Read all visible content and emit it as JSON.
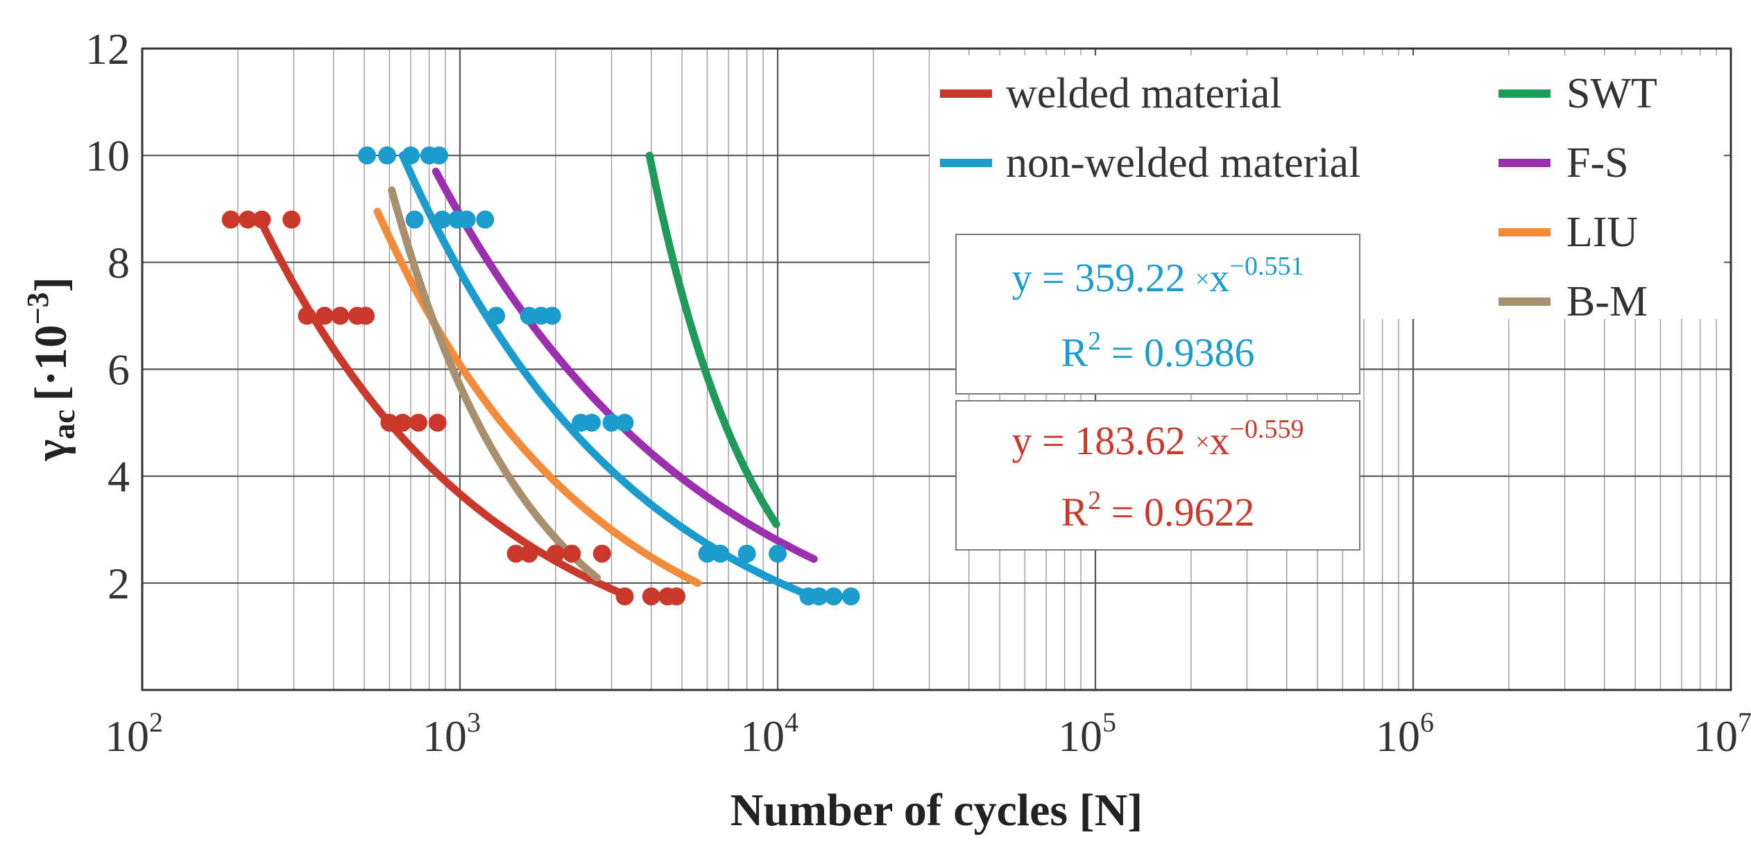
{
  "chart_data": {
    "type": "scatter",
    "title": "",
    "xlabel": "Number of cycles [N]",
    "ylabel": "γac [·10⁻³]",
    "ylabel_main": "γ",
    "ylabel_sub": "ac",
    "ylabel_unit": "[·10",
    "ylabel_exp": "−3",
    "ylabel_close": "]",
    "xscale": "log",
    "xlim": [
      100,
      10000000
    ],
    "ylim": [
      0,
      12
    ],
    "x_ticks": [
      {
        "value": 100,
        "base": "10",
        "exp": "2"
      },
      {
        "value": 1000,
        "base": "10",
        "exp": "3"
      },
      {
        "value": 10000,
        "base": "10",
        "exp": "4"
      },
      {
        "value": 100000,
        "base": "10",
        "exp": "5"
      },
      {
        "value": 1000000,
        "base": "10",
        "exp": "6"
      },
      {
        "value": 10000000,
        "base": "10",
        "exp": "7"
      }
    ],
    "y_ticks": [
      "2",
      "4",
      "6",
      "8",
      "10",
      "12"
    ],
    "y_tick_values": [
      2,
      4,
      6,
      8,
      10,
      12
    ],
    "grid": true,
    "legend_position": "top-right",
    "series": [
      {
        "name": "welded material",
        "kind": "scatter+fit",
        "color": "#c8392b",
        "points": [
          [
            190,
            8.8
          ],
          [
            215,
            8.8
          ],
          [
            238,
            8.8
          ],
          [
            295,
            8.8
          ],
          [
            330,
            7.0
          ],
          [
            375,
            7.0
          ],
          [
            420,
            7.0
          ],
          [
            475,
            7.0
          ],
          [
            505,
            7.0
          ],
          [
            600,
            5.0
          ],
          [
            660,
            5.0
          ],
          [
            740,
            5.0
          ],
          [
            850,
            5.0
          ],
          [
            1500,
            2.55
          ],
          [
            1650,
            2.55
          ],
          [
            2000,
            2.55
          ],
          [
            2250,
            2.55
          ],
          [
            2800,
            2.55
          ],
          [
            3300,
            1.75
          ],
          [
            4000,
            1.75
          ],
          [
            4500,
            1.75
          ],
          [
            4800,
            1.75
          ]
        ],
        "fit": [
          [
            235,
            8.8
          ],
          [
            3400,
            1.75
          ]
        ]
      },
      {
        "name": "non-welded material",
        "kind": "scatter+fit",
        "color": "#1c9ccd",
        "points": [
          [
            510,
            10.0
          ],
          [
            590,
            10.0
          ],
          [
            700,
            10.0
          ],
          [
            800,
            10.0
          ],
          [
            860,
            10.0
          ],
          [
            720,
            8.8
          ],
          [
            880,
            8.8
          ],
          [
            980,
            8.8
          ],
          [
            1050,
            8.8
          ],
          [
            1200,
            8.8
          ],
          [
            1300,
            7.0
          ],
          [
            1650,
            7.0
          ],
          [
            1800,
            7.0
          ],
          [
            1950,
            7.0
          ],
          [
            2400,
            5.0
          ],
          [
            2600,
            5.0
          ],
          [
            3000,
            5.0
          ],
          [
            3300,
            5.0
          ],
          [
            6000,
            2.55
          ],
          [
            6600,
            2.55
          ],
          [
            8000,
            2.55
          ],
          [
            10000,
            2.55
          ],
          [
            12500,
            1.75
          ],
          [
            13500,
            1.75
          ],
          [
            15000,
            1.75
          ],
          [
            17000,
            1.75
          ]
        ],
        "fit": [
          [
            660,
            10.0
          ],
          [
            12800,
            1.75
          ]
        ]
      },
      {
        "name": "SWT",
        "kind": "curve",
        "color": "#1f9a5a",
        "fit": [
          [
            3950,
            10.0
          ],
          [
            9900,
            3.1
          ]
        ]
      },
      {
        "name": "F-S",
        "kind": "curve",
        "color": "#9b2fae",
        "fit": [
          [
            840,
            9.7
          ],
          [
            13000,
            2.45
          ]
        ]
      },
      {
        "name": "LIU",
        "kind": "curve",
        "color": "#f28c3c",
        "fit": [
          [
            550,
            8.95
          ],
          [
            5600,
            2.0
          ]
        ]
      },
      {
        "name": "B-M",
        "kind": "curve",
        "color": "#a8906e",
        "fit": [
          [
            610,
            9.35
          ],
          [
            2700,
            2.1
          ]
        ]
      }
    ],
    "equations": [
      {
        "y": "y = 359.22 ",
        "x": "x",
        "exp": "−0.551",
        "r2_prefix": "R",
        "r2_sup": "2",
        "r2_value": " = 0.9386",
        "color": "#1c9ccd"
      },
      {
        "y": "y = 183.62 ",
        "x": "x",
        "exp": "−0.559",
        "r2_prefix": "R",
        "r2_sup": "2",
        "r2_value": " = 0.9622",
        "color": "#c8392b"
      }
    ],
    "legend": [
      "welded material",
      "non-welded material",
      "SWT",
      "F-S",
      "LIU",
      "B-M"
    ]
  }
}
